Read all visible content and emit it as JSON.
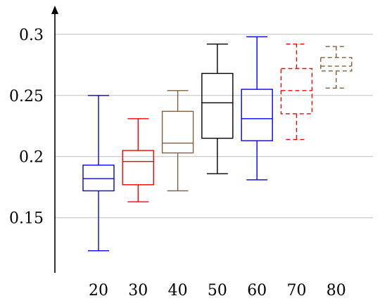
{
  "chart_data": {
    "type": "boxplot",
    "title": "",
    "xlabel": "",
    "ylabel": "",
    "ylim": [
      0.105,
      0.32
    ],
    "grid": "horizontal",
    "x_ticks": [
      "20",
      "30",
      "40",
      "50",
      "60",
      "70",
      "80"
    ],
    "y_ticks": [
      {
        "value": 0.15,
        "label": "0.15"
      },
      {
        "value": 0.2,
        "label": "0.2"
      },
      {
        "value": 0.25,
        "label": "0.25"
      },
      {
        "value": 0.3,
        "label": "0.3"
      }
    ],
    "boxes": [
      {
        "category": "20",
        "min": 0.123,
        "q1": 0.172,
        "median": 0.182,
        "q3": 0.193,
        "max": 0.25,
        "color": "#0000ff",
        "dashed": false
      },
      {
        "category": "30",
        "min": 0.163,
        "q1": 0.177,
        "median": 0.196,
        "q3": 0.205,
        "max": 0.231,
        "color": "#ff0000",
        "dashed": false
      },
      {
        "category": "40",
        "min": 0.172,
        "q1": 0.203,
        "median": 0.211,
        "q3": 0.237,
        "max": 0.254,
        "color": "#7f5f3f",
        "dashed": false
      },
      {
        "category": "50",
        "min": 0.186,
        "q1": 0.215,
        "median": 0.244,
        "q3": 0.268,
        "max": 0.292,
        "color": "#000000",
        "dashed": false
      },
      {
        "category": "60",
        "min": 0.181,
        "q1": 0.213,
        "median": 0.231,
        "q3": 0.255,
        "max": 0.298,
        "color": "#0000ff",
        "dashed": false
      },
      {
        "category": "70",
        "min": 0.214,
        "q1": 0.235,
        "median": 0.254,
        "q3": 0.272,
        "max": 0.292,
        "color": "#ff0000",
        "dashed": true
      },
      {
        "category": "80",
        "min": 0.256,
        "q1": 0.27,
        "median": 0.274,
        "q3": 0.281,
        "max": 0.29,
        "color": "#7f5f3f",
        "dashed": true
      }
    ]
  }
}
